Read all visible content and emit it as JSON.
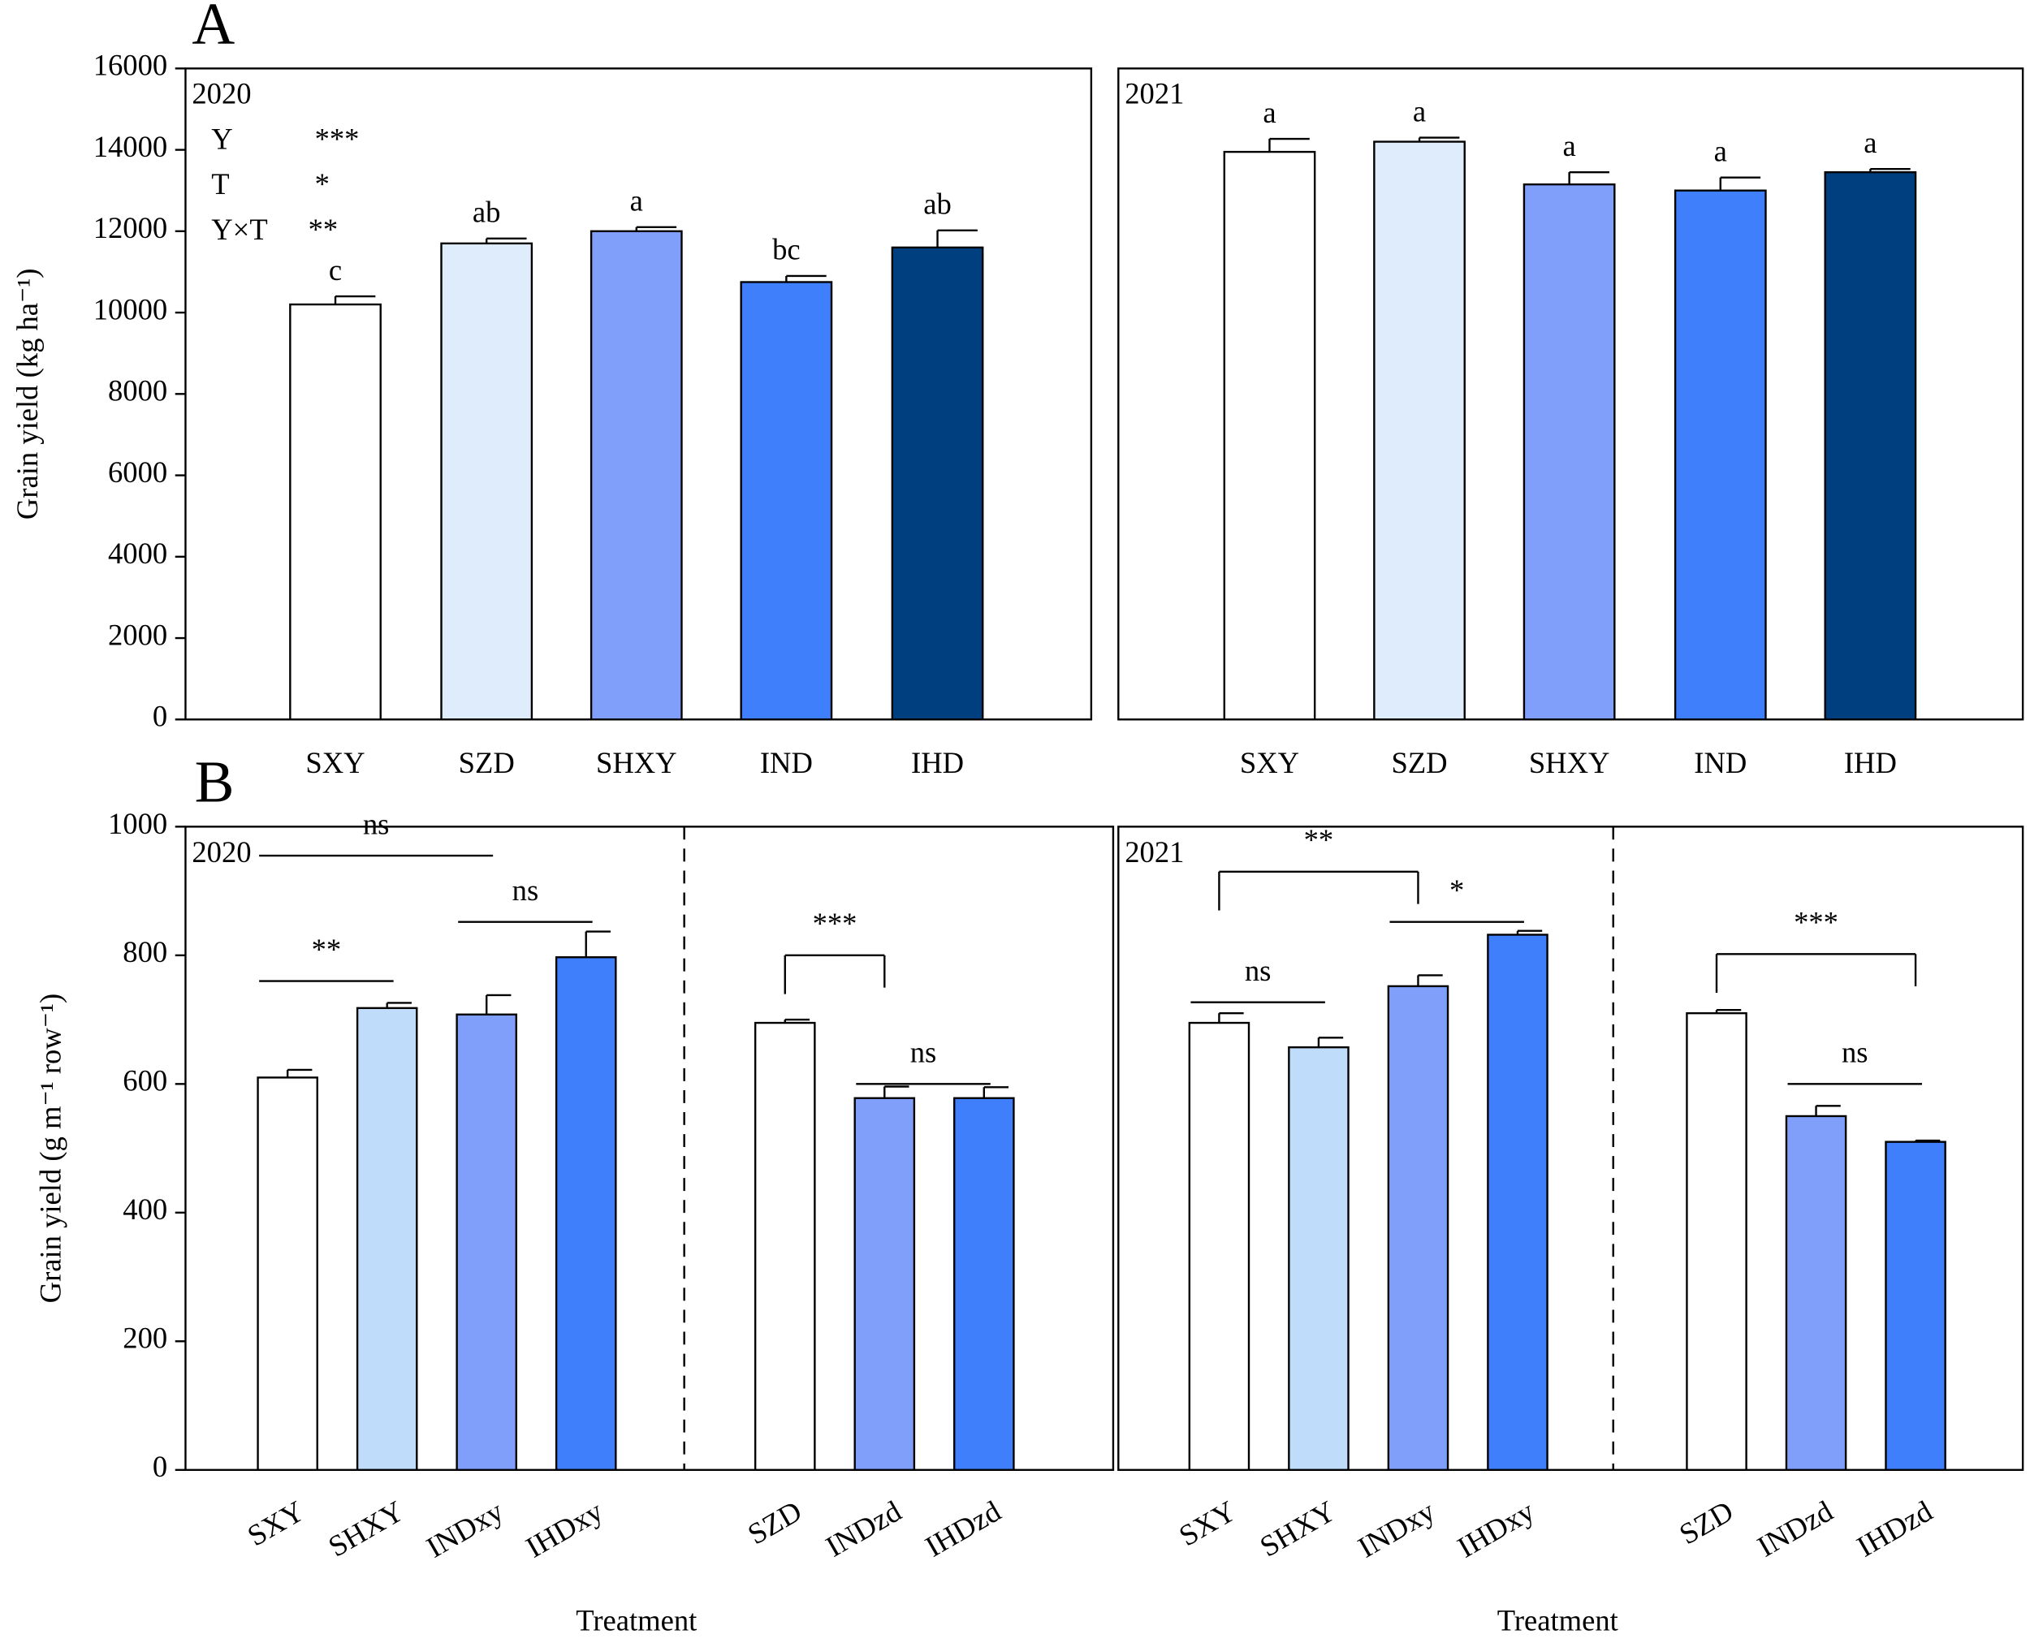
{
  "chart_data": [
    {
      "type": "bar",
      "panel": "A",
      "title": "2020",
      "y_label": "Grain yield (kg ha⁻¹)",
      "categories": [
        "SXY",
        "SZD",
        "SHXY",
        "IND",
        "IHD"
      ],
      "values": [
        10200,
        11700,
        12000,
        10750,
        11600
      ],
      "errors": [
        200,
        120,
        100,
        150,
        420
      ],
      "letters": [
        "c",
        "ab",
        "a",
        "bc",
        "ab"
      ],
      "colors": [
        "#ffffff",
        "#deecfc",
        "#7f9ffb",
        "#3f7ffb",
        "#003f7f"
      ],
      "annotations": [
        "Y",
        "***",
        "T",
        "*",
        "Y×T",
        "**"
      ],
      "ylim": [
        0,
        16000
      ],
      "yticks": [
        0,
        2000,
        4000,
        6000,
        8000,
        10000,
        12000,
        14000,
        16000
      ]
    },
    {
      "type": "bar",
      "title": "2021",
      "categories": [
        "SXY",
        "SZD",
        "SHXY",
        "IND",
        "IHD"
      ],
      "values": [
        13950,
        14200,
        13150,
        13000,
        13450
      ],
      "errors": [
        320,
        100,
        300,
        320,
        80
      ],
      "letters": [
        "a",
        "a",
        "a",
        "a",
        "a"
      ],
      "colors": [
        "#ffffff",
        "#deecfc",
        "#7f9ffb",
        "#3f7ffb",
        "#003f7f"
      ],
      "ylim": [
        0,
        16000
      ]
    },
    {
      "type": "bar",
      "panel": "B",
      "title": "2020",
      "y_label": "Grain yield (g m⁻¹ row⁻¹)",
      "x_label": "Treatment",
      "categories": [
        "SXY",
        "SHXY",
        "INDxy",
        "IHDxy",
        "SZD",
        "INDzd",
        "IHDzd"
      ],
      "values": [
        610,
        718,
        708,
        797,
        695,
        578,
        578
      ],
      "errors": [
        12,
        8,
        30,
        40,
        5,
        18,
        17
      ],
      "colors": [
        "#ffffff",
        "#bfdcfb",
        "#7f9ffb",
        "#3f7ffb",
        "#ffffff",
        "#7f9ffb",
        "#3f7ffb"
      ],
      "comparisons": [
        {
          "from": 0,
          "to": 1,
          "y": 760,
          "label": "**",
          "style": "line"
        },
        {
          "from": 0,
          "to": 2,
          "y": 955,
          "label": "ns",
          "style": "line"
        },
        {
          "from": 2,
          "to": 3,
          "y": 852,
          "label": "ns",
          "style": "line"
        },
        {
          "from": 4,
          "to": 5,
          "y": 800,
          "label": "***",
          "style": "bracket"
        },
        {
          "from": 5,
          "to": 6,
          "y": 600,
          "label": "ns",
          "style": "line"
        }
      ],
      "ylim": [
        0,
        1000
      ],
      "yticks": [
        0,
        200,
        400,
        600,
        800,
        1000
      ]
    },
    {
      "type": "bar",
      "title": "2021",
      "x_label": "Treatment",
      "categories": [
        "SXY",
        "SHXY",
        "INDxy",
        "IHDxy",
        "SZD",
        "INDzd",
        "IHDzd"
      ],
      "values": [
        695,
        657,
        752,
        832,
        710,
        550,
        510
      ],
      "errors": [
        15,
        15,
        17,
        6,
        5,
        16,
        2
      ],
      "colors": [
        "#ffffff",
        "#bfdcfb",
        "#7f9ffb",
        "#3f7ffb",
        "#ffffff",
        "#7f9ffb",
        "#3f7ffb"
      ],
      "comparisons": [
        {
          "from": 0,
          "to": 1,
          "y": 727,
          "label": "ns",
          "style": "line"
        },
        {
          "from": 0,
          "to": 2,
          "y": 930,
          "label": "**",
          "style": "bracket"
        },
        {
          "from": 2,
          "to": 3,
          "y": 852,
          "label": "*",
          "style": "line"
        },
        {
          "from": 4,
          "to": 6,
          "y": 802,
          "label": "***",
          "style": "bracket"
        },
        {
          "from": 5,
          "to": 6,
          "y": 600,
          "label": "ns",
          "style": "line"
        }
      ],
      "ylim": [
        0,
        1000
      ]
    }
  ]
}
